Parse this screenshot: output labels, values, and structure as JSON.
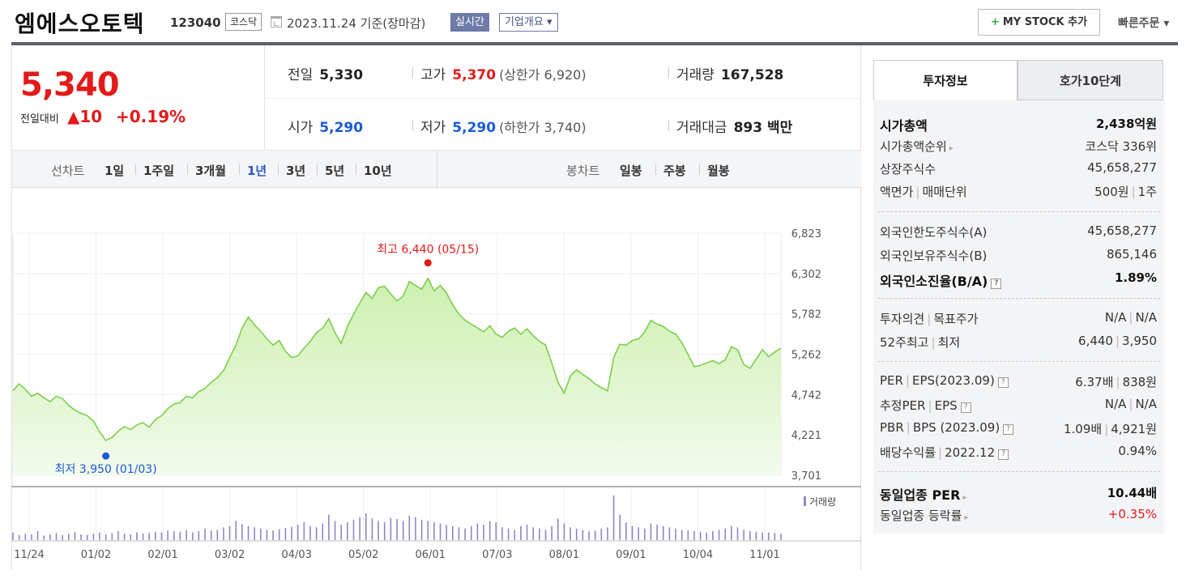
{
  "header": {
    "company": "엠에스오토텍",
    "code": "123040",
    "market": "코스닥",
    "date": "2023.11.24 기준(장마감)",
    "realtime": "실시간",
    "corp_info": "기업개요 ▾",
    "mystock": "MY STOCK 추가",
    "mystock_icon": "+",
    "quick_order": "빠른주문 ▾"
  },
  "price": {
    "current": "5,340",
    "change_label": "전일대비",
    "change": "▲10",
    "change_pct": "+0.19%"
  },
  "stats": {
    "prev_label": "전일",
    "prev": "5,330",
    "high_label": "고가",
    "high": "5,370",
    "upper_limit": "(상한가 6,920)",
    "volume_label": "거래량",
    "volume": "167,528",
    "open_label": "시가",
    "open": "5,290",
    "low_label": "저가",
    "low": "5,290",
    "lower_limit": "(하한가 3,740)",
    "amount_label": "거래대금",
    "amount": "893 백만"
  },
  "periods": {
    "line_label": "선차트",
    "line_items": [
      "1일",
      "1주일",
      "3개월",
      "1년",
      "3년",
      "5년",
      "10년"
    ],
    "active": "1년",
    "candle_label": "봉차트",
    "candle_items": [
      "일봉",
      "주봉",
      "월봉"
    ]
  },
  "chart_data": {
    "type": "area",
    "title": "",
    "y_ticks": [
      "6,823",
      "6,302",
      "5,782",
      "5,262",
      "4,742",
      "4,221",
      "3,701"
    ],
    "ylim": [
      3701,
      6823
    ],
    "x_ticks": [
      "11/24",
      "01/02",
      "02/01",
      "03/02",
      "04/03",
      "05/02",
      "06/01",
      "07/03",
      "08/01",
      "09/01",
      "10/04",
      "11/01"
    ],
    "high_annotation": "최고 6,440 (05/15)",
    "low_annotation": "최저 3,950 (01/03)",
    "volume_legend": "거래량",
    "line_color": "#7ccf4a",
    "fill_color": "#cdf0b0",
    "series": [
      {
        "values": [
          4790,
          4880,
          4810,
          4720,
          4760,
          4700,
          4650,
          4720,
          4690,
          4600,
          4540,
          4500,
          4470,
          4400,
          4260,
          4150,
          4190,
          4270,
          4330,
          4290,
          4350,
          4380,
          4320,
          4420,
          4470,
          4560,
          4620,
          4640,
          4720,
          4700,
          4780,
          4820,
          4900,
          4960,
          5050,
          5220,
          5380,
          5600,
          5740,
          5640,
          5560,
          5460,
          5380,
          5440,
          5300,
          5220,
          5240,
          5340,
          5430,
          5540,
          5600,
          5720,
          5540,
          5400,
          5620,
          5780,
          5920,
          6060,
          5980,
          6120,
          6140,
          6040,
          5950,
          6010,
          6200,
          6150,
          6100,
          6240,
          6080,
          6150,
          6050,
          5900,
          5780,
          5700,
          5650,
          5600,
          5550,
          5630,
          5520,
          5480,
          5560,
          5600,
          5520,
          5590,
          5500,
          5430,
          5380,
          5150,
          4900,
          4760,
          4980,
          5060,
          5000,
          4950,
          4880,
          4830,
          4790,
          5220,
          5390,
          5380,
          5440,
          5460,
          5550,
          5700,
          5650,
          5620,
          5560,
          5520,
          5410,
          5260,
          5100,
          5120,
          5150,
          5180,
          5140,
          5190,
          5360,
          5320,
          5130,
          5080,
          5200,
          5320,
          5230,
          5290,
          5340
        ]
      }
    ],
    "volume": [
      12,
      8,
      10,
      9,
      14,
      7,
      9,
      11,
      8,
      10,
      13,
      9,
      8,
      10,
      12,
      9,
      11,
      14,
      10,
      9,
      12,
      10,
      11,
      13,
      12,
      15,
      14,
      13,
      16,
      12,
      14,
      18,
      15,
      16,
      20,
      22,
      30,
      25,
      22,
      20,
      18,
      16,
      15,
      17,
      19,
      21,
      24,
      28,
      22,
      20,
      26,
      40,
      30,
      24,
      28,
      32,
      36,
      42,
      34,
      30,
      28,
      35,
      33,
      30,
      38,
      36,
      32,
      30,
      28,
      26,
      24,
      22,
      20,
      18,
      22,
      26,
      24,
      30,
      28,
      20,
      18,
      16,
      22,
      24,
      20,
      18,
      16,
      22,
      34,
      26,
      20,
      18,
      16,
      14,
      15,
      18,
      20,
      70,
      40,
      28,
      22,
      20,
      18,
      26,
      24,
      22,
      20,
      18,
      16,
      15,
      14,
      13,
      12,
      14,
      16,
      18,
      22,
      20,
      16,
      14,
      13,
      12,
      12,
      11,
      10
    ]
  },
  "invest": {
    "tab1": "투자정보",
    "tab2": "호가10단계",
    "market_cap_label": "시가총액",
    "market_cap": "2,438억원",
    "cap_rank_label": "시가총액순위",
    "cap_rank": "코스닥 336위",
    "shares_label": "상장주식수",
    "shares": "45,658,277",
    "par_label": "액면가",
    "unit_label": "매매단위",
    "par": "500원",
    "unit": "1주",
    "foreign_limit_label": "외국인한도주식수(A)",
    "foreign_limit": "45,658,277",
    "foreign_hold_label": "외국인보유주식수(B)",
    "foreign_hold": "865,146",
    "foreign_ratio_label": "외국인소진율(B/A)",
    "foreign_ratio": "1.89%",
    "opinion_label": "투자의견",
    "target_label": "목표주가",
    "opinion": "N/A",
    "target": "N/A",
    "w52_high_label": "52주최고",
    "w52_low_label": "최저",
    "w52_high": "6,440",
    "w52_low": "3,950",
    "per_label": "PER",
    "eps_label": "EPS(2023.09)",
    "per": "6.37배",
    "eps": "838원",
    "eper_label": "추정PER",
    "eeps_label": "EPS",
    "eper": "N/A",
    "eeps": "N/A",
    "pbr_label": "PBR",
    "bps_label": "BPS (2023.09)",
    "pbr": "1.09배",
    "bps": "4,921원",
    "div_label": "배당수익률",
    "div_year": "2022.12",
    "div": "0.94%",
    "sector_per_label": "동일업종 PER",
    "sector_per": "10.44배",
    "sector_chg_label": "동일업종 등락률",
    "sector_chg": "+0.35%",
    "help_icon": "?",
    "arrow_icon": "▸"
  }
}
